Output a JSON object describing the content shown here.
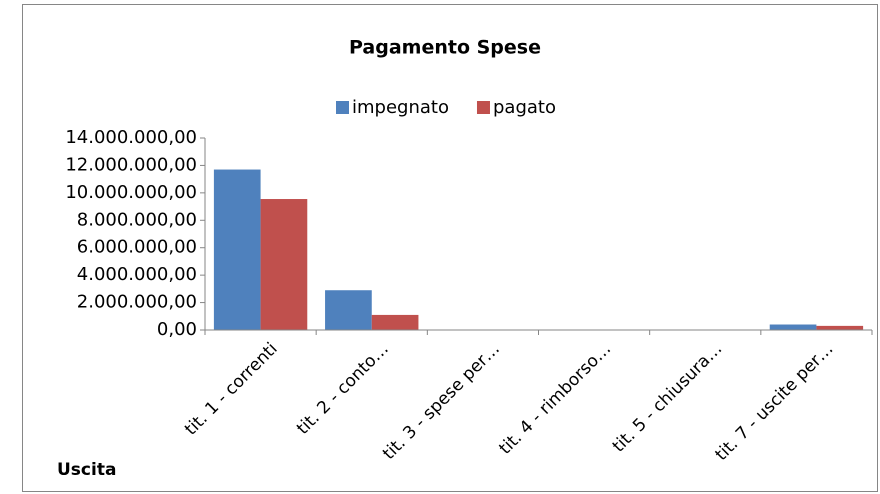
{
  "chart_data": {
    "type": "bar",
    "title": "Pagamento Spese",
    "x_label": "Uscita",
    "categories": [
      "tit. 1 - correnti",
      "tit. 2 - conto…",
      "tit. 3 - spese per…",
      "tit. 4 - rimborso…",
      "tit. 5 - chiusura…",
      "tit. 7 - uscite per…"
    ],
    "series": [
      {
        "name": "impegnato",
        "color": "#4f81bd",
        "values": [
          11700000,
          2900000,
          0,
          0,
          0,
          400000
        ]
      },
      {
        "name": "pagato",
        "color": "#c0504d",
        "values": [
          9550000,
          1100000,
          0,
          0,
          0,
          300000
        ]
      }
    ],
    "ylim": [
      0,
      14000000
    ],
    "yticks": [
      {
        "value": 0,
        "label": "0,00"
      },
      {
        "value": 2000000,
        "label": "2.000.000,00"
      },
      {
        "value": 4000000,
        "label": "4.000.000,00"
      },
      {
        "value": 6000000,
        "label": "6.000.000,00"
      },
      {
        "value": 8000000,
        "label": "8.000.000,00"
      },
      {
        "value": 10000000,
        "label": "10.000.000,00"
      },
      {
        "value": 12000000,
        "label": "12.000.000,00"
      },
      {
        "value": 14000000,
        "label": "14.000.000,00"
      }
    ],
    "legend": "top",
    "grid": false
  }
}
